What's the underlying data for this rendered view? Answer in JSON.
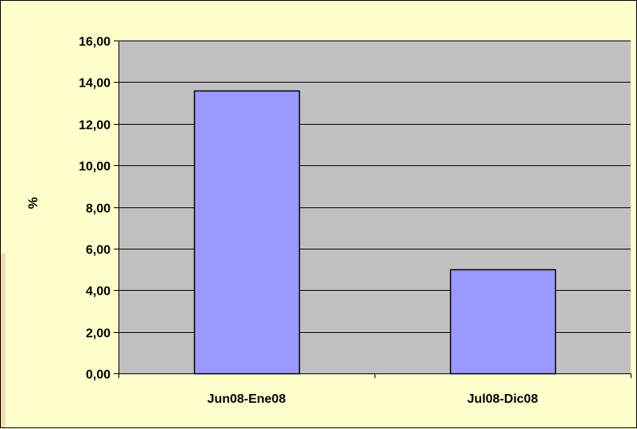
{
  "chart_data": {
    "type": "bar",
    "categories": [
      "Jun08-Ene08",
      "Jul08-Dic08"
    ],
    "values": [
      13.6,
      5.0
    ],
    "title": "",
    "xlabel": "",
    "ylabel": "%",
    "ylim": [
      0,
      16
    ],
    "yticks": [
      "0,00",
      "2,00",
      "4,00",
      "6,00",
      "8,00",
      "10,00",
      "12,00",
      "14,00",
      "16,00"
    ],
    "grid": true,
    "legend": "none",
    "colors": {
      "bar_fill": "#9999ff",
      "plot_bg": "#c0c0c0",
      "chart_bg": "#ffffcc",
      "grid": "#000000"
    }
  }
}
